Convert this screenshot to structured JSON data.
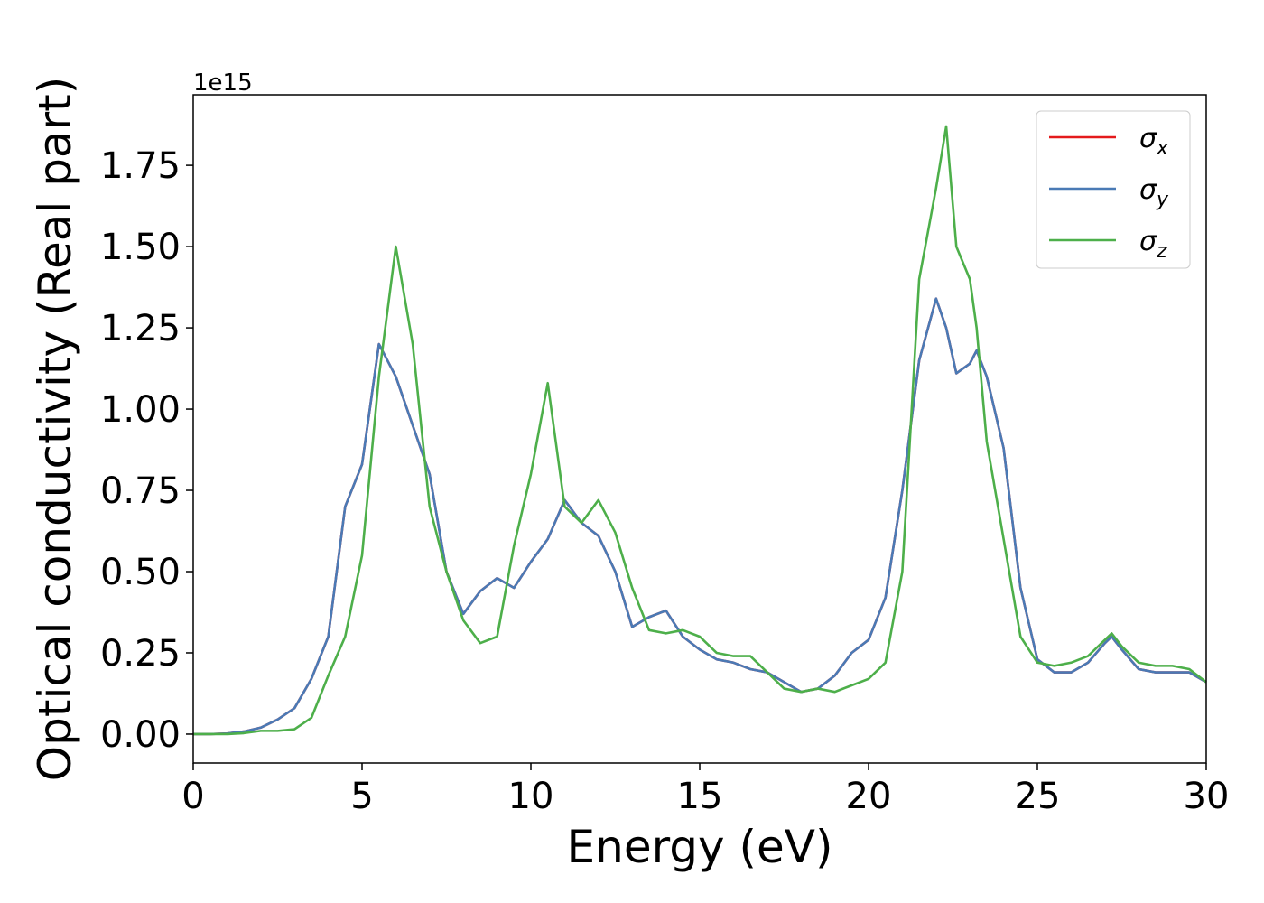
{
  "chart_data": {
    "type": "line",
    "xlabel": "Energy (eV)",
    "ylabel": "Optical conductivity (Real part)",
    "y_offset_label": "1e15",
    "x": [
      0,
      0.5,
      1,
      1.5,
      2,
      2.5,
      3,
      3.5,
      4,
      4.5,
      5,
      5.5,
      6,
      6.5,
      7,
      7.5,
      8,
      8.5,
      9,
      9.5,
      10,
      10.5,
      11,
      11.5,
      12,
      12.5,
      13,
      13.5,
      14,
      14.5,
      15,
      15.5,
      16,
      16.5,
      17,
      17.5,
      18,
      18.5,
      19,
      19.5,
      20,
      20.5,
      21,
      21.5,
      22,
      22.3,
      22.6,
      23,
      23.2,
      23.5,
      24,
      24.5,
      25,
      25.5,
      26,
      26.5,
      27,
      27.2,
      27.5,
      28,
      28.5,
      29,
      29.5,
      30
    ],
    "series": [
      {
        "name": "σx",
        "color": "#e41a1c",
        "values": [
          0,
          0,
          0.002,
          0.008,
          0.02,
          0.045,
          0.08,
          0.17,
          0.3,
          0.7,
          0.83,
          1.2,
          1.1,
          0.95,
          0.8,
          0.5,
          0.37,
          0.44,
          0.48,
          0.45,
          0.53,
          0.6,
          0.72,
          0.65,
          0.61,
          0.5,
          0.33,
          0.36,
          0.38,
          0.3,
          0.26,
          0.23,
          0.22,
          0.2,
          0.19,
          0.16,
          0.13,
          0.14,
          0.18,
          0.25,
          0.29,
          0.42,
          0.75,
          1.15,
          1.34,
          1.25,
          1.11,
          1.14,
          1.18,
          1.1,
          0.88,
          0.45,
          0.23,
          0.19,
          0.19,
          0.22,
          0.28,
          0.3,
          0.26,
          0.2,
          0.19,
          0.19,
          0.19,
          0.16
        ]
      },
      {
        "name": "σy",
        "color": "#4a7ab5",
        "values": [
          0,
          0,
          0.002,
          0.008,
          0.02,
          0.045,
          0.08,
          0.17,
          0.3,
          0.7,
          0.83,
          1.2,
          1.1,
          0.95,
          0.8,
          0.5,
          0.37,
          0.44,
          0.48,
          0.45,
          0.53,
          0.6,
          0.72,
          0.65,
          0.61,
          0.5,
          0.33,
          0.36,
          0.38,
          0.3,
          0.26,
          0.23,
          0.22,
          0.2,
          0.19,
          0.16,
          0.13,
          0.14,
          0.18,
          0.25,
          0.29,
          0.42,
          0.75,
          1.15,
          1.34,
          1.25,
          1.11,
          1.14,
          1.18,
          1.1,
          0.88,
          0.45,
          0.23,
          0.19,
          0.19,
          0.22,
          0.28,
          0.3,
          0.26,
          0.2,
          0.19,
          0.19,
          0.19,
          0.16
        ]
      },
      {
        "name": "σz",
        "color": "#4daf4a",
        "values": [
          0,
          0,
          0,
          0.003,
          0.01,
          0.01,
          0.015,
          0.05,
          0.18,
          0.3,
          0.55,
          1.1,
          1.5,
          1.2,
          0.7,
          0.5,
          0.35,
          0.28,
          0.3,
          0.58,
          0.8,
          1.08,
          0.7,
          0.65,
          0.72,
          0.62,
          0.45,
          0.32,
          0.31,
          0.32,
          0.3,
          0.25,
          0.24,
          0.24,
          0.19,
          0.14,
          0.13,
          0.14,
          0.13,
          0.15,
          0.17,
          0.22,
          0.5,
          1.4,
          1.68,
          1.87,
          1.5,
          1.4,
          1.25,
          0.9,
          0.6,
          0.3,
          0.22,
          0.21,
          0.22,
          0.24,
          0.29,
          0.31,
          0.27,
          0.22,
          0.21,
          0.21,
          0.2,
          0.16
        ]
      }
    ],
    "xlim": [
      0,
      30
    ],
    "xticks": [
      0,
      5,
      10,
      15,
      20,
      25,
      30
    ],
    "ylim": [
      -0.089,
      1.967
    ],
    "yticks": [
      {
        "value": 0,
        "label": "0.00"
      },
      {
        "value": 0.25,
        "label": "0.25"
      },
      {
        "value": 0.5,
        "label": "0.50"
      },
      {
        "value": 0.75,
        "label": "0.75"
      },
      {
        "value": 1,
        "label": "1.00"
      },
      {
        "value": 1.25,
        "label": "1.25"
      },
      {
        "value": 1.5,
        "label": "1.50"
      },
      {
        "value": 1.75,
        "label": "1.75"
      }
    ],
    "legend": "upper right",
    "grid": false
  }
}
